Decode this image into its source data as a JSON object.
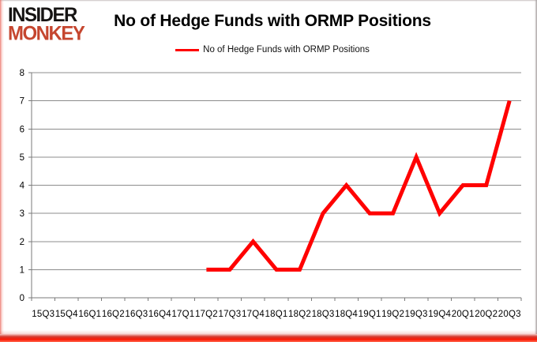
{
  "logo": {
    "line1": "INSIDER",
    "line2": "MONKEY"
  },
  "header": {
    "title": "No of Hedge Funds with ORMP Positions"
  },
  "legend": {
    "label": "No of Hedge Funds with ORMP Positions"
  },
  "colors": {
    "line": "#ff0000",
    "logo_red": "#c5462f",
    "grid": "#8c8c8c",
    "axis": "#7a7a7a",
    "text": "#000000",
    "glow": "#fb1703"
  },
  "chart_data": {
    "type": "line",
    "title": "No of Hedge Funds with ORMP Positions",
    "xlabel": "",
    "ylabel": "",
    "categories": [
      "15Q3",
      "15Q4",
      "16Q1",
      "16Q2",
      "16Q3",
      "16Q4",
      "17Q1",
      "17Q2",
      "17Q3",
      "17Q4",
      "18Q1",
      "18Q2",
      "18Q3",
      "18Q4",
      "19Q1",
      "19Q2",
      "19Q3",
      "19Q4",
      "20Q1",
      "20Q2",
      "20Q3"
    ],
    "series": [
      {
        "name": "No of Hedge Funds with ORMP Positions",
        "values": [
          null,
          null,
          null,
          null,
          null,
          null,
          null,
          1,
          1,
          2,
          1,
          1,
          3,
          4,
          3,
          3,
          5,
          3,
          4,
          4,
          7
        ]
      }
    ],
    "ylim": [
      0,
      8
    ],
    "yticks": [
      0,
      1,
      2,
      3,
      4,
      5,
      6,
      7,
      8
    ],
    "grid": "horizontal",
    "legend_position": "top"
  }
}
